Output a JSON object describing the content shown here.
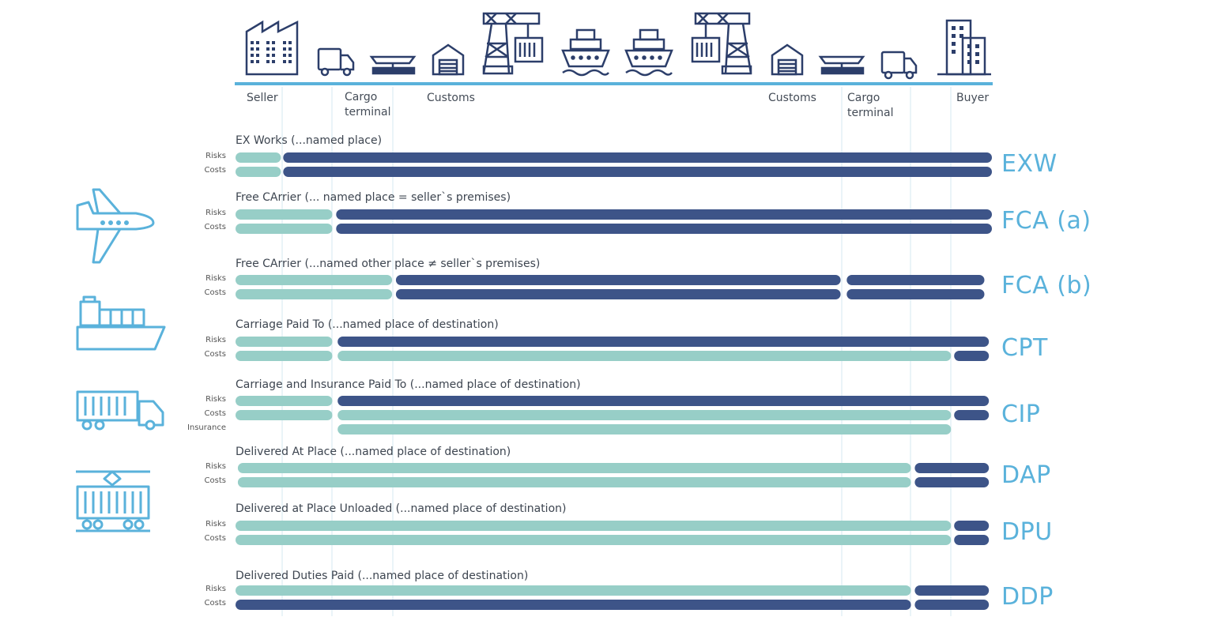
{
  "colors": {
    "seller": "#97cec7",
    "buyer": "#3d5488",
    "icon_dark": "#2c3e6a",
    "icon_light": "#5ab2db",
    "baseline": "#5ab2db",
    "code": "#5ab2db",
    "divider": "#d6eaf2"
  },
  "chain": {
    "icons": [
      "factory-icon",
      "truck-icon",
      "cargo-terminal-icon",
      "customs-warehouse-icon",
      "port-crane-icon",
      "container-ship-icon",
      "container-ship-icon",
      "port-crane-icon",
      "customs-warehouse-icon",
      "cargo-terminal-icon",
      "truck-icon",
      "office-building-icon"
    ],
    "labels": {
      "seller": "Seller",
      "cargo_terminal_1": "Cargo\nterminal",
      "customs_1": "Customs",
      "customs_2": "Customs",
      "cargo_terminal_2": "Cargo\nterminal",
      "buyer": "Buyer"
    }
  },
  "transport_modes": [
    "airplane-icon",
    "cargo-ship-icon",
    "container-truck-icon",
    "freight-train-icon"
  ],
  "row_labels": {
    "risks": "Risks",
    "costs": "Costs",
    "insurance": "Insurance"
  },
  "terms": [
    {
      "code": "EXW",
      "title": "EX Works (...named place)",
      "rows": [
        {
          "label": "Risks",
          "segments": [
            [
              "seller",
              0,
              0.06
            ],
            [
              "buyer",
              0.063,
              1
            ]
          ]
        },
        {
          "label": "Costs",
          "segments": [
            [
              "seller",
              0,
              0.06
            ],
            [
              "buyer",
              0.063,
              1
            ]
          ]
        }
      ]
    },
    {
      "code": "FCA (a)",
      "title": "Free CArrier (... named place = seller`s premises)",
      "rows": [
        {
          "label": "Risks",
          "segments": [
            [
              "seller",
              0,
              0.128
            ],
            [
              "buyer",
              0.133,
              1
            ]
          ]
        },
        {
          "label": "Costs",
          "segments": [
            [
              "seller",
              0,
              0.128
            ],
            [
              "buyer",
              0.133,
              1
            ]
          ]
        }
      ]
    },
    {
      "code": "FCA (b)",
      "title": "Free CArrier (...named other place ≠ seller`s premises)",
      "rows": [
        {
          "label": "Risks",
          "segments": [
            [
              "seller",
              0,
              0.207
            ],
            [
              "buyer",
              0.212,
              0.8
            ],
            [
              "buyer",
              0.808,
              0.99
            ]
          ]
        },
        {
          "label": "Costs",
          "segments": [
            [
              "seller",
              0,
              0.207
            ],
            [
              "buyer",
              0.212,
              0.8
            ],
            [
              "buyer",
              0.808,
              0.99
            ]
          ]
        }
      ]
    },
    {
      "code": "CPT",
      "title": "Carriage Paid To (...named place of destination)",
      "rows": [
        {
          "label": "Risks",
          "segments": [
            [
              "seller",
              0,
              0.128
            ],
            [
              "buyer",
              0.135,
              0.996
            ]
          ]
        },
        {
          "label": "Costs",
          "segments": [
            [
              "seller",
              0,
              0.128
            ],
            [
              "seller",
              0.135,
              0.946
            ],
            [
              "buyer",
              0.95,
              0.996
            ]
          ]
        }
      ]
    },
    {
      "code": "CIP",
      "title": "Carriage and Insurance Paid To (...named place of destination)",
      "rows": [
        {
          "label": "Risks",
          "segments": [
            [
              "seller",
              0,
              0.128
            ],
            [
              "buyer",
              0.135,
              0.996
            ]
          ]
        },
        {
          "label": "Costs",
          "segments": [
            [
              "seller",
              0,
              0.128
            ],
            [
              "seller",
              0.135,
              0.946
            ],
            [
              "buyer",
              0.95,
              0.996
            ]
          ]
        },
        {
          "label": "Insurance",
          "segments": [
            [
              "seller",
              0.135,
              0.946
            ]
          ]
        }
      ]
    },
    {
      "code": "DAP",
      "title": "Delivered At Place (...named place of destination)",
      "rows": [
        {
          "label": "Risks",
          "segments": [
            [
              "seller",
              0.003,
              0.893
            ],
            [
              "buyer",
              0.898,
              0.996
            ]
          ]
        },
        {
          "label": "Costs",
          "segments": [
            [
              "seller",
              0.003,
              0.893
            ],
            [
              "buyer",
              0.898,
              0.996
            ]
          ]
        }
      ]
    },
    {
      "code": "DPU",
      "title": "Delivered at Place Unloaded (...named place of destination)",
      "rows": [
        {
          "label": "Risks",
          "segments": [
            [
              "seller",
              0,
              0.946
            ],
            [
              "buyer",
              0.95,
              0.996
            ]
          ]
        },
        {
          "label": "Costs",
          "segments": [
            [
              "seller",
              0,
              0.946
            ],
            [
              "buyer",
              0.95,
              0.996
            ]
          ]
        }
      ]
    },
    {
      "code": "DDP",
      "title": "Delivered Duties Paid (...named place of destination)",
      "rows": [
        {
          "label": "Risks",
          "segments": [
            [
              "seller",
              0,
              0.893
            ],
            [
              "buyer",
              0.898,
              0.996
            ]
          ]
        },
        {
          "label": "Costs",
          "segments": [
            [
              "buyer",
              0,
              0.893
            ],
            [
              "buyer",
              0.898,
              0.996
            ]
          ]
        }
      ]
    }
  ]
}
